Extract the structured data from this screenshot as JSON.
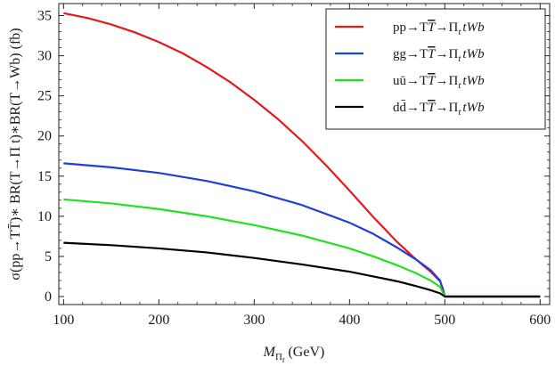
{
  "chart_data": {
    "type": "line",
    "xlabel": "M_Πt (GeV)",
    "xlabel_main": "M",
    "xlabel_sub": "Π",
    "xlabel_subsub": "t",
    "xlabel_unit": "(GeV)",
    "ylabel": "σ(pp→TT̄)∗ BR(T→Π t)∗BR(T→Wb) (fb)",
    "xlim": [
      95,
      610
    ],
    "ylim": [
      -1,
      36.5
    ],
    "xticks": [
      100,
      200,
      300,
      400,
      500,
      600
    ],
    "yticks": [
      0,
      5,
      10,
      15,
      20,
      25,
      30,
      35
    ],
    "grid": false,
    "legend_position": "top-right",
    "series": [
      {
        "name": "pp→TT̄→Π_t tWb",
        "color": "#e31a1c",
        "points": [
          [
            100,
            35.3
          ],
          [
            125,
            34.7
          ],
          [
            150,
            33.9
          ],
          [
            175,
            32.9
          ],
          [
            200,
            31.7
          ],
          [
            225,
            30.3
          ],
          [
            250,
            28.6
          ],
          [
            275,
            26.7
          ],
          [
            300,
            24.5
          ],
          [
            325,
            22.1
          ],
          [
            350,
            19.4
          ],
          [
            375,
            16.4
          ],
          [
            400,
            13.2
          ],
          [
            425,
            9.9
          ],
          [
            450,
            6.8
          ],
          [
            470,
            4.6
          ],
          [
            485,
            3.1
          ],
          [
            495,
            1.9
          ],
          [
            498,
            1.0
          ],
          [
            500,
            0.0
          ],
          [
            600,
            0.0
          ]
        ]
      },
      {
        "name": "gg→TT̄→Π_t tWb",
        "color": "#1f3fd9",
        "points": [
          [
            100,
            16.6
          ],
          [
            150,
            16.1
          ],
          [
            200,
            15.4
          ],
          [
            250,
            14.4
          ],
          [
            300,
            13.1
          ],
          [
            350,
            11.4
          ],
          [
            400,
            9.2
          ],
          [
            425,
            7.8
          ],
          [
            450,
            6.1
          ],
          [
            470,
            4.6
          ],
          [
            485,
            3.3
          ],
          [
            495,
            2.0
          ],
          [
            500,
            0.0
          ],
          [
            600,
            0.0
          ]
        ]
      },
      {
        "name": "uū→TT̄→Π_t tWb",
        "color": "#22e022",
        "points": [
          [
            100,
            12.1
          ],
          [
            150,
            11.6
          ],
          [
            200,
            10.9
          ],
          [
            250,
            10.0
          ],
          [
            300,
            8.9
          ],
          [
            350,
            7.6
          ],
          [
            400,
            6.0
          ],
          [
            425,
            5.0
          ],
          [
            450,
            3.9
          ],
          [
            470,
            2.9
          ],
          [
            485,
            2.0
          ],
          [
            495,
            1.2
          ],
          [
            500,
            0.0
          ],
          [
            600,
            0.0
          ]
        ]
      },
      {
        "name": "dd̄→TT̄→Π_t tWb",
        "color": "#000000",
        "points": [
          [
            100,
            6.7
          ],
          [
            150,
            6.4
          ],
          [
            200,
            6.0
          ],
          [
            250,
            5.5
          ],
          [
            300,
            4.8
          ],
          [
            350,
            4.0
          ],
          [
            400,
            3.1
          ],
          [
            425,
            2.5
          ],
          [
            450,
            1.9
          ],
          [
            470,
            1.3
          ],
          [
            485,
            0.8
          ],
          [
            495,
            0.4
          ],
          [
            500,
            0.0
          ],
          [
            600,
            0.0
          ]
        ]
      }
    ],
    "legend": [
      {
        "prefix": "pp",
        "mid": "→T",
        "tbar": "T",
        "rest": "→Π",
        "sub": "t",
        "tail": "tWb"
      },
      {
        "prefix": "gg",
        "mid": "→T",
        "tbar": "T",
        "rest": "→Π",
        "sub": "t",
        "tail": "tWb"
      },
      {
        "prefix": "uū",
        "mid": "→T",
        "tbar": "T",
        "rest": "→Π",
        "sub": "t",
        "tail": "tWb"
      },
      {
        "prefix": "dd̄",
        "mid": "→T",
        "tbar": "T",
        "rest": "→Π",
        "sub": "t",
        "tail": "tWb"
      }
    ]
  }
}
